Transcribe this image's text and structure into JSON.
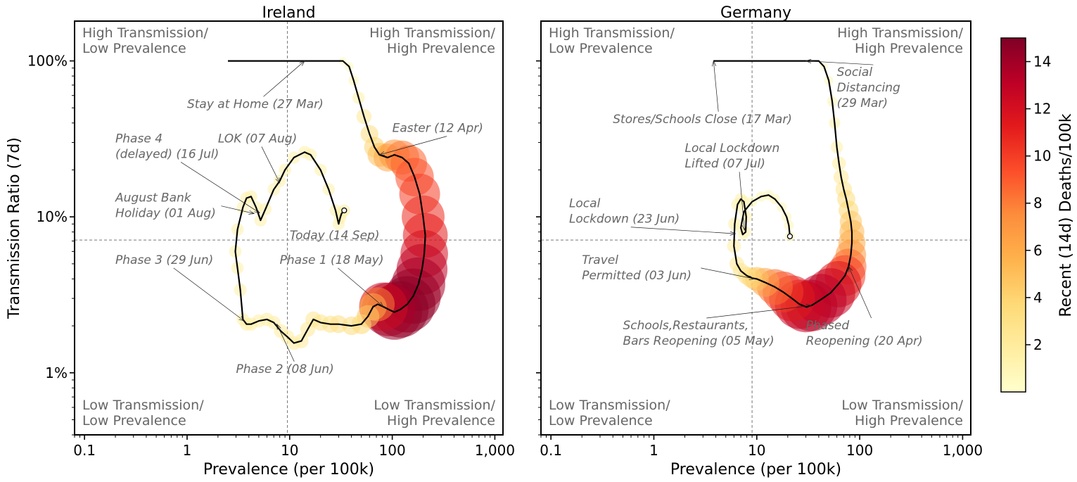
{
  "chart_data": [
    {
      "type": "scatter",
      "title": "Ireland",
      "xlabel": "Prevalence (per 100k)",
      "ylabel": "Transmission Ratio (7d)",
      "xscale": "log",
      "yscale": "log",
      "xlim": [
        0.08,
        1200
      ],
      "ylim": [
        0.4,
        180
      ],
      "xticks": [
        {
          "value": 0.1,
          "label": "0.1"
        },
        {
          "value": 1,
          "label": "1"
        },
        {
          "value": 10,
          "label": "10"
        },
        {
          "value": 100,
          "label": "100"
        },
        {
          "value": 1000,
          "label": "1,000"
        }
      ],
      "yticks": [
        {
          "value": 1,
          "label": "1%"
        },
        {
          "value": 10,
          "label": "10%"
        },
        {
          "value": 100,
          "label": "100%"
        }
      ],
      "reference_lines": {
        "x": 9.5,
        "y": 7.1
      },
      "quadrants": {
        "top_left": [
          "High Transmission/",
          "Low Prevalence"
        ],
        "top_right": [
          "High Transmission/",
          "High Prevalence"
        ],
        "bottom_left": [
          "Low Transmission/",
          "Low Prevalence"
        ],
        "bottom_right": [
          "Low Transmission/",
          "High Prevalence"
        ]
      },
      "series": [
        {
          "points": [
            [
              2.5,
              100,
              0
            ],
            [
              5,
              100,
              0
            ],
            [
              10,
              100,
              0
            ],
            [
              20,
              100,
              0
            ],
            [
              33,
              100,
              0.3
            ],
            [
              38,
              92,
              0.6
            ],
            [
              42,
              75,
              1
            ],
            [
              47,
              58,
              1.6
            ],
            [
              53,
              44,
              2.4
            ],
            [
              60,
              34,
              3.2
            ],
            [
              67,
              28,
              4
            ],
            [
              75,
              25,
              5
            ],
            [
              90,
              24,
              6.2
            ],
            [
              105,
              25,
              7
            ],
            [
              125,
              24,
              8
            ],
            [
              145,
              22,
              8.7
            ],
            [
              165,
              18,
              9.3
            ],
            [
              185,
              14,
              10
            ],
            [
              200,
              10,
              10.6
            ],
            [
              210,
              7.6,
              11.2
            ],
            [
              205,
              5.8,
              12
            ],
            [
              195,
              4.6,
              13
            ],
            [
              180,
              3.7,
              13.8
            ],
            [
              160,
              3.1,
              14.3
            ],
            [
              140,
              2.75,
              14.6
            ],
            [
              120,
              2.55,
              14.6
            ],
            [
              105,
              2.45,
              14.3
            ],
            [
              92,
              2.55,
              13.8
            ],
            [
              82,
              2.65,
              12.3
            ],
            [
              72,
              2.75,
              8
            ],
            [
              65,
              2.65,
              6
            ],
            [
              58,
              2.3,
              4.6
            ],
            [
              50,
              2.05,
              3.8
            ],
            [
              40,
              2,
              3.4
            ],
            [
              30,
              2.05,
              3.2
            ],
            [
              25,
              2.05,
              3
            ],
            [
              20,
              2.1,
              2.8
            ],
            [
              17,
              2.2,
              2.6
            ],
            [
              15,
              1.9,
              2.4
            ],
            [
              13,
              1.6,
              2.2
            ],
            [
              11,
              1.55,
              2
            ],
            [
              9.5,
              1.7,
              2
            ],
            [
              8.2,
              1.85,
              2
            ],
            [
              7,
              2.1,
              1.9
            ],
            [
              6,
              2.2,
              1.9
            ],
            [
              5,
              2.15,
              1.8
            ],
            [
              4.2,
              2.05,
              1.8
            ],
            [
              3.8,
              2.05,
              1.8
            ],
            [
              3.5,
              2.2,
              1.7
            ],
            [
              3.3,
              3.4,
              1.7
            ],
            [
              3.1,
              4.7,
              1.6
            ],
            [
              2.95,
              6,
              1.6
            ],
            [
              3.1,
              8.3,
              1.6
            ],
            [
              3.5,
              11.5,
              1.6
            ],
            [
              3.8,
              13.2,
              1.6
            ],
            [
              4.2,
              13.5,
              1.6
            ],
            [
              4.7,
              11.5,
              1.6
            ],
            [
              5.2,
              9.5,
              1.6
            ],
            [
              5.8,
              11.2,
              1.6
            ],
            [
              7,
              15,
              1.6
            ],
            [
              8,
              17,
              1.6
            ],
            [
              9,
              20,
              1.6
            ],
            [
              11,
              24,
              1.6
            ],
            [
              14,
              26,
              1.6
            ],
            [
              16,
              25,
              1.6
            ],
            [
              20,
              20,
              1.6
            ],
            [
              24,
              15,
              1.6
            ],
            [
              28,
              11,
              1.5
            ],
            [
              30,
              9,
              1.5
            ],
            [
              31,
              9.8,
              1.5
            ],
            [
              32,
              10.5,
              1.5
            ],
            [
              34,
              11,
              1.5
            ]
          ],
          "today": [
            34,
            11
          ]
        }
      ],
      "annotations": [
        {
          "lines": [
            "Stay at Home (27 Mar)"
          ],
          "text_x": 1.0,
          "text_y": 50,
          "point": [
            14,
            100
          ]
        },
        {
          "lines": [
            "Easter (12 Apr)"
          ],
          "text_x": 100,
          "text_y": 35,
          "point": [
            75,
            25
          ]
        },
        {
          "lines": [
            "Phase 4",
            "(delayed) (16 Jul)"
          ],
          "text_x": 0.2,
          "text_y": 30,
          "point": [
            5.1,
            10.6
          ]
        },
        {
          "lines": [
            "LOK (07 Aug)"
          ],
          "text_x": 2.0,
          "text_y": 30,
          "point": [
            8,
            16.5
          ]
        },
        {
          "lines": [
            "August Bank",
            "Holiday (01 Aug)"
          ],
          "text_x": 0.2,
          "text_y": 12.5,
          "point": [
            4.5,
            10.5
          ]
        },
        {
          "lines": [
            "Today (14 Sep)"
          ],
          "text_x": 10,
          "text_y": 7.2,
          "point": null
        },
        {
          "lines": [
            "Phase 3 (29 Jun)"
          ],
          "text_x": 0.2,
          "text_y": 5,
          "point": [
            3.6,
            2.15
          ]
        },
        {
          "lines": [
            "Phase 1 (18 May)"
          ],
          "text_x": 8,
          "text_y": 5,
          "point": [
            82,
            2.65
          ]
        },
        {
          "lines": [
            "Phase 2 (08 Jun)"
          ],
          "text_x": 3,
          "text_y": 1.0,
          "point": [
            7.5,
            2.05
          ]
        }
      ]
    },
    {
      "type": "scatter",
      "title": "Germany",
      "xlabel": "Prevalence (per 100k)",
      "ylabel": "",
      "xscale": "log",
      "yscale": "log",
      "xlim": [
        0.08,
        1200
      ],
      "ylim": [
        0.4,
        180
      ],
      "xticks": [
        {
          "value": 0.1,
          "label": "0.1"
        },
        {
          "value": 1,
          "label": "1"
        },
        {
          "value": 10,
          "label": "10"
        },
        {
          "value": 100,
          "label": "100"
        },
        {
          "value": 1000,
          "label": "1,000"
        }
      ],
      "yticks": [
        {
          "value": 1,
          "label": ""
        },
        {
          "value": 10,
          "label": ""
        },
        {
          "value": 100,
          "label": ""
        }
      ],
      "reference_lines": {
        "x": 9,
        "y": 7.1
      },
      "quadrants": {
        "top_left": [
          "High Transmission/",
          "Low Prevalence"
        ],
        "top_right": [
          "High Transmission/",
          "High Prevalence"
        ],
        "bottom_left": [
          "Low Transmission/",
          "Low Prevalence"
        ],
        "bottom_right": [
          "Low Transmission/",
          "High Prevalence"
        ]
      },
      "series": [
        {
          "points": [
            [
              3.8,
              100,
              0
            ],
            [
              10,
              100,
              0
            ],
            [
              20,
              100,
              0
            ],
            [
              40,
              100,
              0
            ],
            [
              45,
              92,
              0.3
            ],
            [
              50,
              75,
              0.7
            ],
            [
              54,
              55,
              1
            ],
            [
              57,
              40,
              1.3
            ],
            [
              60,
              28,
              1.6
            ],
            [
              63,
              22,
              2
            ],
            [
              66,
              18,
              2.4
            ],
            [
              70,
              15,
              2.8
            ],
            [
              74,
              13,
              3.3
            ],
            [
              78,
              11,
              3.8
            ],
            [
              82,
              9.3,
              4.5
            ],
            [
              84,
              8,
              5.3
            ],
            [
              84,
              6.8,
              6
            ],
            [
              82,
              5.7,
              7
            ],
            [
              78,
              4.8,
              8.5
            ],
            [
              72,
              4.2,
              10
            ],
            [
              62,
              3.7,
              11.6
            ],
            [
              52,
              3.25,
              12.6
            ],
            [
              42,
              2.95,
              13.1
            ],
            [
              34,
              2.7,
              13.2
            ],
            [
              30,
              2.65,
              13
            ],
            [
              26,
              2.75,
              12.5
            ],
            [
              22,
              3,
              11.5
            ],
            [
              18,
              3.3,
              10
            ],
            [
              15,
              3.55,
              8.5
            ],
            [
              12,
              3.8,
              6.5
            ],
            [
              10,
              4,
              5
            ],
            [
              9,
              4.05,
              4
            ],
            [
              8,
              4.2,
              3.3
            ],
            [
              7,
              4.5,
              2.7
            ],
            [
              6.4,
              5,
              2.3
            ],
            [
              6,
              6.5,
              2
            ],
            [
              6.1,
              9,
              1.8
            ],
            [
              6.5,
              12,
              1.6
            ],
            [
              7,
              13,
              1.5
            ],
            [
              7.5,
              12.5,
              1.4
            ],
            [
              7.9,
              10,
              1.3
            ],
            [
              7.8,
              8,
              1.2
            ],
            [
              7.3,
              7.7,
              1.1
            ],
            [
              7,
              8.5,
              1.1
            ],
            [
              7.5,
              10.8,
              1
            ],
            [
              9,
              12.5,
              1
            ],
            [
              11,
              13.5,
              1
            ],
            [
              13,
              13.8,
              1
            ],
            [
              15,
              13,
              1
            ],
            [
              17.5,
              11.5,
              0.9
            ],
            [
              19.5,
              10,
              0.9
            ],
            [
              20.5,
              8.8,
              0.9
            ],
            [
              21,
              7.5,
              0.9
            ]
          ],
          "today": [
            21,
            7.5
          ]
        }
      ],
      "annotations": [
        {
          "lines": [
            "Social",
            "Distancing",
            " (29 Mar)"
          ],
          "text_x": 60,
          "text_y": 80,
          "point": [
            30,
            100
          ]
        },
        {
          "lines": [
            "Stores/Schools Close (17 Mar)"
          ],
          "text_x": 0.4,
          "text_y": 40,
          "point": [
            3.8,
            100
          ]
        },
        {
          "lines": [
            "Local Lockdown",
            "Lifted (07 Jul)"
          ],
          "text_x": 2,
          "text_y": 26,
          "point": [
            7.6,
            8.2
          ]
        },
        {
          "lines": [
            "Local",
            "Lockdown (23 Jun)"
          ],
          "text_x": 0.15,
          "text_y": 11.5,
          "point": [
            6.2,
            7.8
          ]
        },
        {
          "lines": [
            "Travel",
            "Permitted (03 Jun)"
          ],
          "text_x": 0.2,
          "text_y": 5,
          "point": [
            9.5,
            4
          ]
        },
        {
          "lines": [
            "Schools,Restaurants,",
            "Bars Reopening (05 May)"
          ],
          "text_x": 0.5,
          "text_y": 1.9,
          "point": [
            34,
            2.7
          ]
        },
        {
          "lines": [
            "Phased",
            "Reopening (20 Apr)"
          ],
          "text_x": 30,
          "text_y": 1.9,
          "point": [
            78,
            4.8
          ]
        }
      ]
    }
  ],
  "colorbar": {
    "label": "Recent (14d) Deaths/100k",
    "min": 0,
    "max": 15,
    "ticks": [
      2,
      4,
      6,
      8,
      10,
      12,
      14
    ],
    "colormap": "YlOrRd",
    "colors": [
      "#ffffcc",
      "#ffeda0",
      "#fed976",
      "#feb24c",
      "#fd8d3c",
      "#fc4e2a",
      "#e31a1c",
      "#bd0026",
      "#800026"
    ]
  }
}
